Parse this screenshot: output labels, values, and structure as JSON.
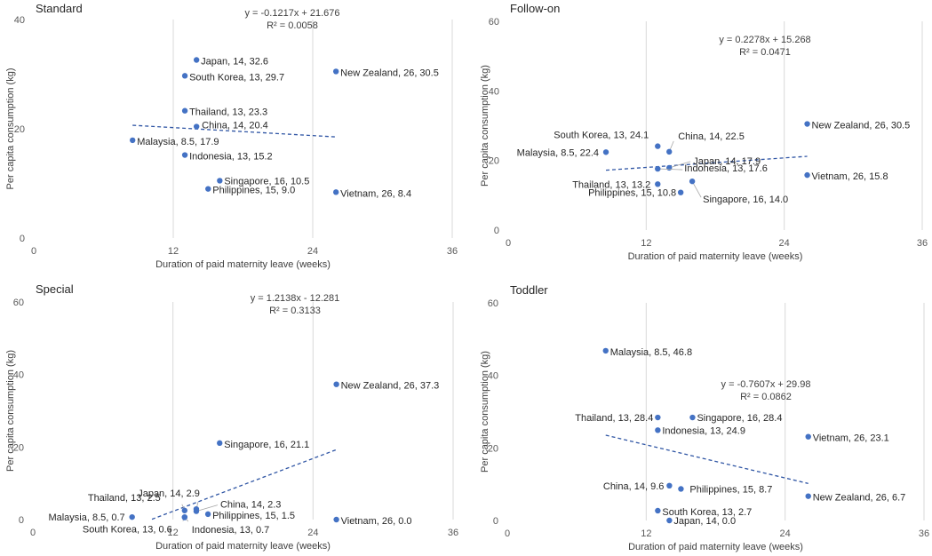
{
  "chart_data": [
    {
      "type": "scatter",
      "title": "Standard",
      "xlabel": "Duration of paid maternity leave (weeks)",
      "ylabel": "Per capita consumption (kg)",
      "xlim": [
        0,
        36
      ],
      "ylim": [
        0,
        40
      ],
      "xticks": [
        0,
        12,
        24,
        36
      ],
      "yticks": [
        0,
        20,
        40
      ],
      "points": [
        {
          "label": "Japan, 14, 32.6",
          "x": 14,
          "y": 32.6
        },
        {
          "label": "New Zealand, 26, 30.5",
          "x": 26,
          "y": 30.5
        },
        {
          "label": "South Korea, 13, 29.7",
          "x": 13,
          "y": 29.7
        },
        {
          "label": "Thailand, 13, 23.3",
          "x": 13,
          "y": 23.3
        },
        {
          "label": "China, 14, 20.4",
          "x": 14,
          "y": 20.4
        },
        {
          "label": "Malaysia, 8.5, 17.9",
          "x": 8.5,
          "y": 17.9
        },
        {
          "label": "Indonesia, 13, 15.2",
          "x": 13,
          "y": 15.2
        },
        {
          "label": "Singapore, 16, 10.5",
          "x": 16,
          "y": 10.5
        },
        {
          "label": "Philippines, 15, 9.0",
          "x": 15,
          "y": 9.0
        },
        {
          "label": "Vietnam, 26, 8.4",
          "x": 26,
          "y": 8.4
        }
      ],
      "trendline": {
        "slope": -0.1217,
        "intercept": 21.676,
        "x_range": [
          8.5,
          26
        ]
      },
      "equation": "y = -0.1217x + 21.676",
      "r2": "R² = 0.0058"
    },
    {
      "type": "scatter",
      "title": "Follow-on",
      "xlabel": "Duration of paid maternity leave (weeks)",
      "ylabel": "Per capita consumption (kg)",
      "xlim": [
        0,
        36
      ],
      "ylim": [
        0,
        60
      ],
      "xticks": [
        0,
        12,
        24,
        36
      ],
      "yticks": [
        0,
        20,
        40,
        60
      ],
      "points": [
        {
          "label": "New Zealand, 26, 30.5",
          "x": 26,
          "y": 30.5
        },
        {
          "label": "South Korea, 13, 24.1",
          "x": 13,
          "y": 24.1
        },
        {
          "label": "China, 14, 22.5",
          "x": 14,
          "y": 22.5
        },
        {
          "label": "Malaysia, 8.5, 22.4",
          "x": 8.5,
          "y": 22.4
        },
        {
          "label": "Japan, 14, 17.9",
          "x": 14,
          "y": 17.9
        },
        {
          "label": "Indonesia, 13, 17.6",
          "x": 13,
          "y": 17.6
        },
        {
          "label": "Vietnam, 26, 15.8",
          "x": 26,
          "y": 15.8
        },
        {
          "label": "Thailand, 13, 13.2",
          "x": 13,
          "y": 13.2
        },
        {
          "label": "Philippines, 15, 10.8",
          "x": 15,
          "y": 10.8
        },
        {
          "label": "Singapore, 16, 14.0",
          "x": 16,
          "y": 14.0
        }
      ],
      "trendline": {
        "slope": 0.2278,
        "intercept": 15.268,
        "x_range": [
          8.5,
          26
        ]
      },
      "equation": "y = 0.2278x + 15.268",
      "r2": "R² = 0.0471"
    },
    {
      "type": "scatter",
      "title": "Special",
      "xlabel": "Duration of paid maternity leave (weeks)",
      "ylabel": "Per capita consumption (kg)",
      "xlim": [
        0,
        36
      ],
      "ylim": [
        0,
        60
      ],
      "xticks": [
        0,
        12,
        24,
        36
      ],
      "yticks": [
        0,
        20,
        40,
        60
      ],
      "points": [
        {
          "label": "New Zealand, 26, 37.3",
          "x": 26,
          "y": 37.3
        },
        {
          "label": "Singapore, 16, 21.1",
          "x": 16,
          "y": 21.1
        },
        {
          "label": "Japan, 14, 2.9",
          "x": 14,
          "y": 2.9
        },
        {
          "label": "Thailand, 13, 2.5",
          "x": 13,
          "y": 2.5
        },
        {
          "label": "China, 14, 2.3",
          "x": 14,
          "y": 2.3
        },
        {
          "label": "Philippines, 15, 1.5",
          "x": 15,
          "y": 1.5
        },
        {
          "label": "Malaysia, 8.5, 0.7",
          "x": 8.5,
          "y": 0.7
        },
        {
          "label": "Vietnam, 26, 0.0",
          "x": 26,
          "y": 0.0
        },
        {
          "label": "South Korea, 13, 0.6",
          "x": 13,
          "y": 0.6
        },
        {
          "label": "Indonesia, 13, 0.7",
          "x": 13,
          "y": 0.7
        }
      ],
      "trendline": {
        "slope": 1.2138,
        "intercept": -12.281,
        "x_range": [
          10.2,
          26
        ]
      },
      "equation": "y = 1.2138x - 12.281",
      "r2": "R² = 0.3133"
    },
    {
      "type": "scatter",
      "title": "Toddler",
      "xlabel": "Duration of paid maternity leave (weeks)",
      "ylabel": "Per capita consumption (kg)",
      "xlim": [
        0,
        36
      ],
      "ylim": [
        0,
        60
      ],
      "xticks": [
        0,
        12,
        24,
        36
      ],
      "yticks": [
        0,
        20,
        40,
        60
      ],
      "points": [
        {
          "label": "Malaysia, 8.5, 46.8",
          "x": 8.5,
          "y": 46.8
        },
        {
          "label": "Thailand, 13, 28.4",
          "x": 13,
          "y": 28.4
        },
        {
          "label": "Singapore, 16, 28.4",
          "x": 16,
          "y": 28.4
        },
        {
          "label": "Indonesia, 13, 24.9",
          "x": 13,
          "y": 24.9
        },
        {
          "label": "Vietnam, 26, 23.1",
          "x": 26,
          "y": 23.1
        },
        {
          "label": "China, 14, 9.6",
          "x": 14,
          "y": 9.6
        },
        {
          "label": "Philippines, 15, 8.7",
          "x": 15,
          "y": 8.7
        },
        {
          "label": "New Zealand, 26, 6.7",
          "x": 26,
          "y": 6.7
        },
        {
          "label": "South Korea, 13, 2.7",
          "x": 13,
          "y": 2.7
        },
        {
          "label": "Japan, 14, 0.0",
          "x": 14,
          "y": 0.0
        }
      ],
      "trendline": {
        "slope": -0.7607,
        "intercept": 29.98,
        "x_range": [
          8.5,
          26
        ]
      },
      "equation": "y = -0.7607x + 29.98",
      "r2": "R² = 0.0862"
    }
  ]
}
